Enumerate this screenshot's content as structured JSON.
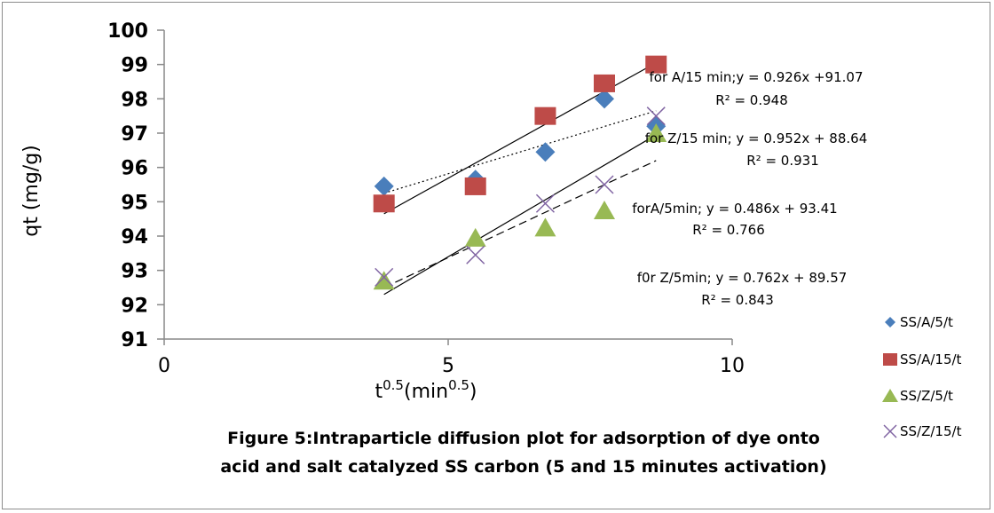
{
  "chart_data": {
    "type": "scatter",
    "xlabel": {
      "base": "t",
      "sup": "0.5",
      "rest": "(min",
      "sup2": "0.5",
      "end": ")"
    },
    "ylabel": "qt (mg/g)",
    "xlim": [
      0,
      10
    ],
    "ylim": [
      91,
      100
    ],
    "xticks": [
      0,
      5,
      10
    ],
    "yticks": [
      91,
      92,
      93,
      94,
      95,
      96,
      97,
      98,
      99,
      100
    ],
    "grid": false,
    "legend_position": "right",
    "caption": [
      "Figure 5:Intraparticle diffusion plot for adsorption of dye  onto",
      "acid and salt catalyzed  SS carbon (5 and 15 minutes activation)"
    ],
    "series": [
      {
        "name": "SS/A/5/t",
        "marker": "diamond",
        "color": "#4a7ebb",
        "x": [
          3.87,
          5.48,
          6.71,
          7.75,
          8.66
        ],
        "y": [
          95.45,
          95.65,
          96.45,
          98.0,
          97.2
        ]
      },
      {
        "name": "SS/A/15/t",
        "marker": "square",
        "color": "#be4b48",
        "x": [
          3.87,
          5.48,
          6.71,
          7.75,
          8.66
        ],
        "y": [
          94.95,
          95.45,
          97.5,
          98.45,
          99.0
        ]
      },
      {
        "name": "SS/Z/5/t",
        "marker": "triangle",
        "color": "#98b954",
        "x": [
          3.87,
          5.48,
          6.71,
          7.75,
          8.66
        ],
        "y": [
          92.7,
          93.95,
          94.25,
          94.75,
          97.0
        ]
      },
      {
        "name": "SS/Z/15/t",
        "marker": "x",
        "color": "#8064a2",
        "x": [
          3.87,
          5.48,
          6.71,
          7.75,
          8.66
        ],
        "y": [
          92.8,
          93.45,
          94.95,
          95.5,
          97.5
        ]
      }
    ],
    "trendlines": [
      {
        "style": "solid",
        "x": [
          3.87,
          8.66
        ],
        "y": [
          94.65,
          99.05
        ]
      },
      {
        "style": "dotted",
        "x": [
          3.87,
          8.66
        ],
        "y": [
          95.25,
          97.65
        ]
      },
      {
        "style": "solid",
        "x": [
          3.87,
          8.66
        ],
        "y": [
          92.3,
          96.95
        ]
      },
      {
        "style": "dashed",
        "x": [
          3.87,
          8.66
        ],
        "y": [
          92.5,
          96.2
        ]
      }
    ],
    "annotations": [
      {
        "line1": "for A/15 min;y = 0.926x +91.07",
        "line2": "R² = 0.948"
      },
      {
        "line1": "for Z/15 min; y = 0.952x + 88.64",
        "line2": "R² = 0.931"
      },
      {
        "line1": "forA/5min; y = 0.486x + 93.41",
        "line2": "R² = 0.766"
      },
      {
        "line1": "f0r Z/5min; y = 0.762x + 89.57",
        "line2": "R² = 0.843"
      }
    ]
  }
}
